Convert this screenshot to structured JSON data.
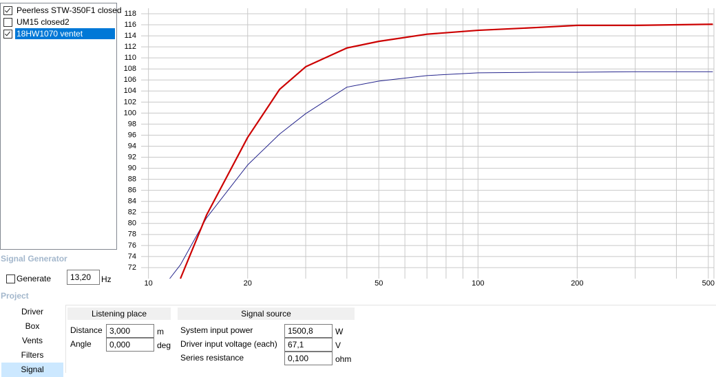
{
  "driver_list": [
    {
      "label": "Peerless STW-350F1 closed",
      "checked": true,
      "selected": false
    },
    {
      "label": "UM15 closed2",
      "checked": false,
      "selected": false
    },
    {
      "label": "18HW1070 ventet",
      "checked": true,
      "selected": true
    }
  ],
  "signal_generator": {
    "title": "Signal Generator",
    "generate_label": "Generate",
    "generate_checked": false,
    "frequency": "13,20",
    "unit": "Hz"
  },
  "project": {
    "title": "Project",
    "nav": [
      "Driver",
      "Box",
      "Vents",
      "Filters",
      "Signal"
    ],
    "selected": 4
  },
  "listening_place": {
    "title": "Listening place",
    "fields": [
      {
        "label": "Distance",
        "value": "3,000",
        "unit": "m"
      },
      {
        "label": "Angle",
        "value": "0,000",
        "unit": "deg"
      }
    ]
  },
  "signal_source": {
    "title": "Signal source",
    "fields": [
      {
        "label": "System input power",
        "value": "1500,8",
        "unit": "W"
      },
      {
        "label": "Driver input voltage (each)",
        "value": "67,1",
        "unit": "V"
      },
      {
        "label": "Series resistance",
        "value": "0,100",
        "unit": "ohm"
      }
    ]
  },
  "chart_data": {
    "type": "line",
    "x": [
      11.6,
      12.5,
      15,
      20,
      25,
      30,
      40,
      50,
      70,
      100,
      150,
      200,
      300,
      516
    ],
    "xlog": true,
    "xlim": [
      9.5,
      520
    ],
    "xticks": [
      10,
      20,
      50,
      100,
      200,
      500
    ],
    "x_minor_grid": [
      30,
      40,
      60,
      70,
      80,
      90,
      300,
      400
    ],
    "ylim": [
      70,
      119
    ],
    "yticks": [
      72,
      74,
      76,
      78,
      80,
      82,
      84,
      86,
      88,
      90,
      92,
      94,
      96,
      98,
      100,
      102,
      104,
      106,
      108,
      110,
      112,
      114,
      116,
      118
    ],
    "grid": true,
    "grid_color": "#c8c8c8",
    "series": [
      {
        "color": "#24248c",
        "width": 1,
        "values": [
          70,
          72.5,
          81,
          90.6,
          96.2,
          99.9,
          104.7,
          105.8,
          106.8,
          107.3,
          107.4,
          107.4,
          107.5,
          107.5
        ]
      },
      {
        "color": "#cc0000",
        "width": 2.2,
        "values": [
          null,
          70,
          81.5,
          95.6,
          104.3,
          108.4,
          111.8,
          113,
          114.3,
          115,
          115.5,
          115.9,
          115.9,
          116.1
        ]
      }
    ]
  }
}
